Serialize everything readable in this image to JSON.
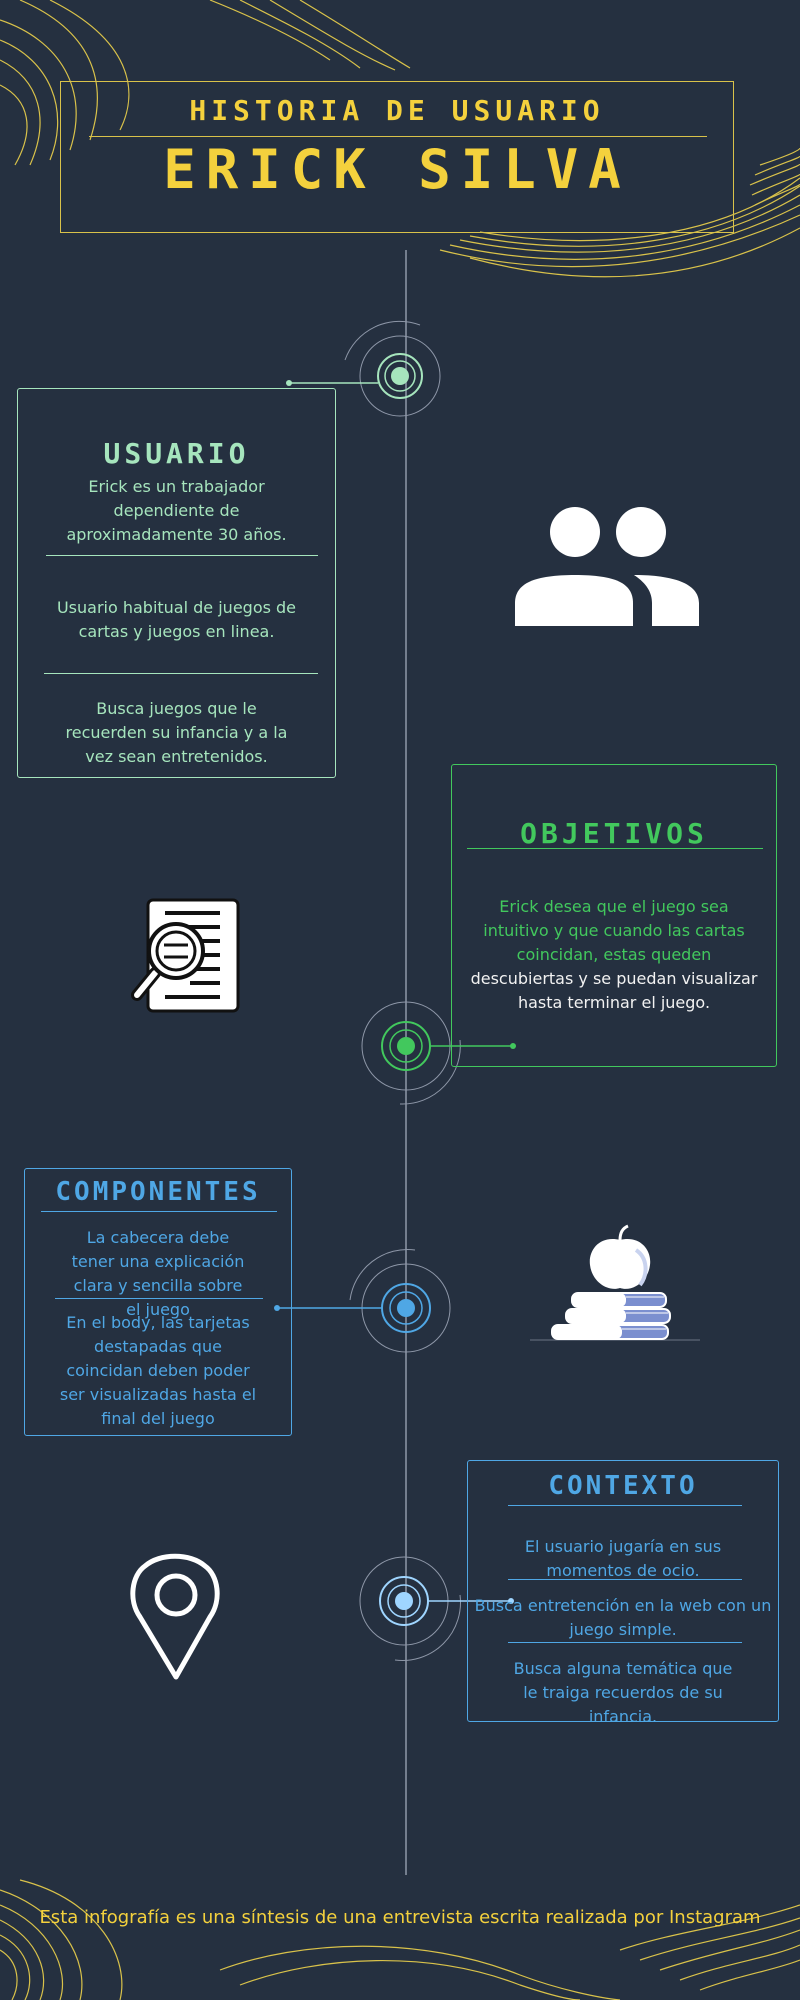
{
  "colors": {
    "background": "#253040",
    "yellow": "#f4d13d",
    "mint": "#a6e5bd",
    "green": "#42c85d",
    "blue": "#4fa7e5",
    "light_blue": "#9fd5ff",
    "timeline": "#8e97a8"
  },
  "header": {
    "subtitle": "HISTORIA DE USUARIO",
    "title": "ERICK SILVA"
  },
  "usuario": {
    "title": "USUARIO",
    "items": [
      "Erick es un trabajador dependiente de aproximadamente 30 años.",
      "Usuario habitual de juegos de cartas y juegos en linea.",
      "Busca juegos que le recuerden su infancia y a la vez sean entretenidos."
    ],
    "icon": "users-icon"
  },
  "objetivos": {
    "title": "OBJETIVOS",
    "text_highlight": "Erick desea que el juego sea intuitivo y que cuando las cartas coincidan, estas queden",
    "text_rest": " descubiertas y se puedan visualizar hasta terminar el juego.",
    "icon": "document-search-icon"
  },
  "componentes": {
    "title": "COMPONENTES",
    "items": [
      "La cabecera debe tener una explicación clara y sencilla sobre el juego",
      "En el body, las tarjetas destapadas que coincidan deben poder ser visualizadas hasta el final del juego"
    ],
    "icon": "books-apple-icon"
  },
  "contexto": {
    "title": "CONTEXTO",
    "items": [
      "El usuario jugaría en sus momentos de ocio.",
      "Busca entretención en la web con un juego simple.",
      "Busca alguna temática que le traiga recuerdos de su infancia."
    ],
    "icon": "location-pin-icon"
  },
  "footer": {
    "text": "Esta infografía es una síntesis de una entrevista escrita realizada por Instagram"
  }
}
